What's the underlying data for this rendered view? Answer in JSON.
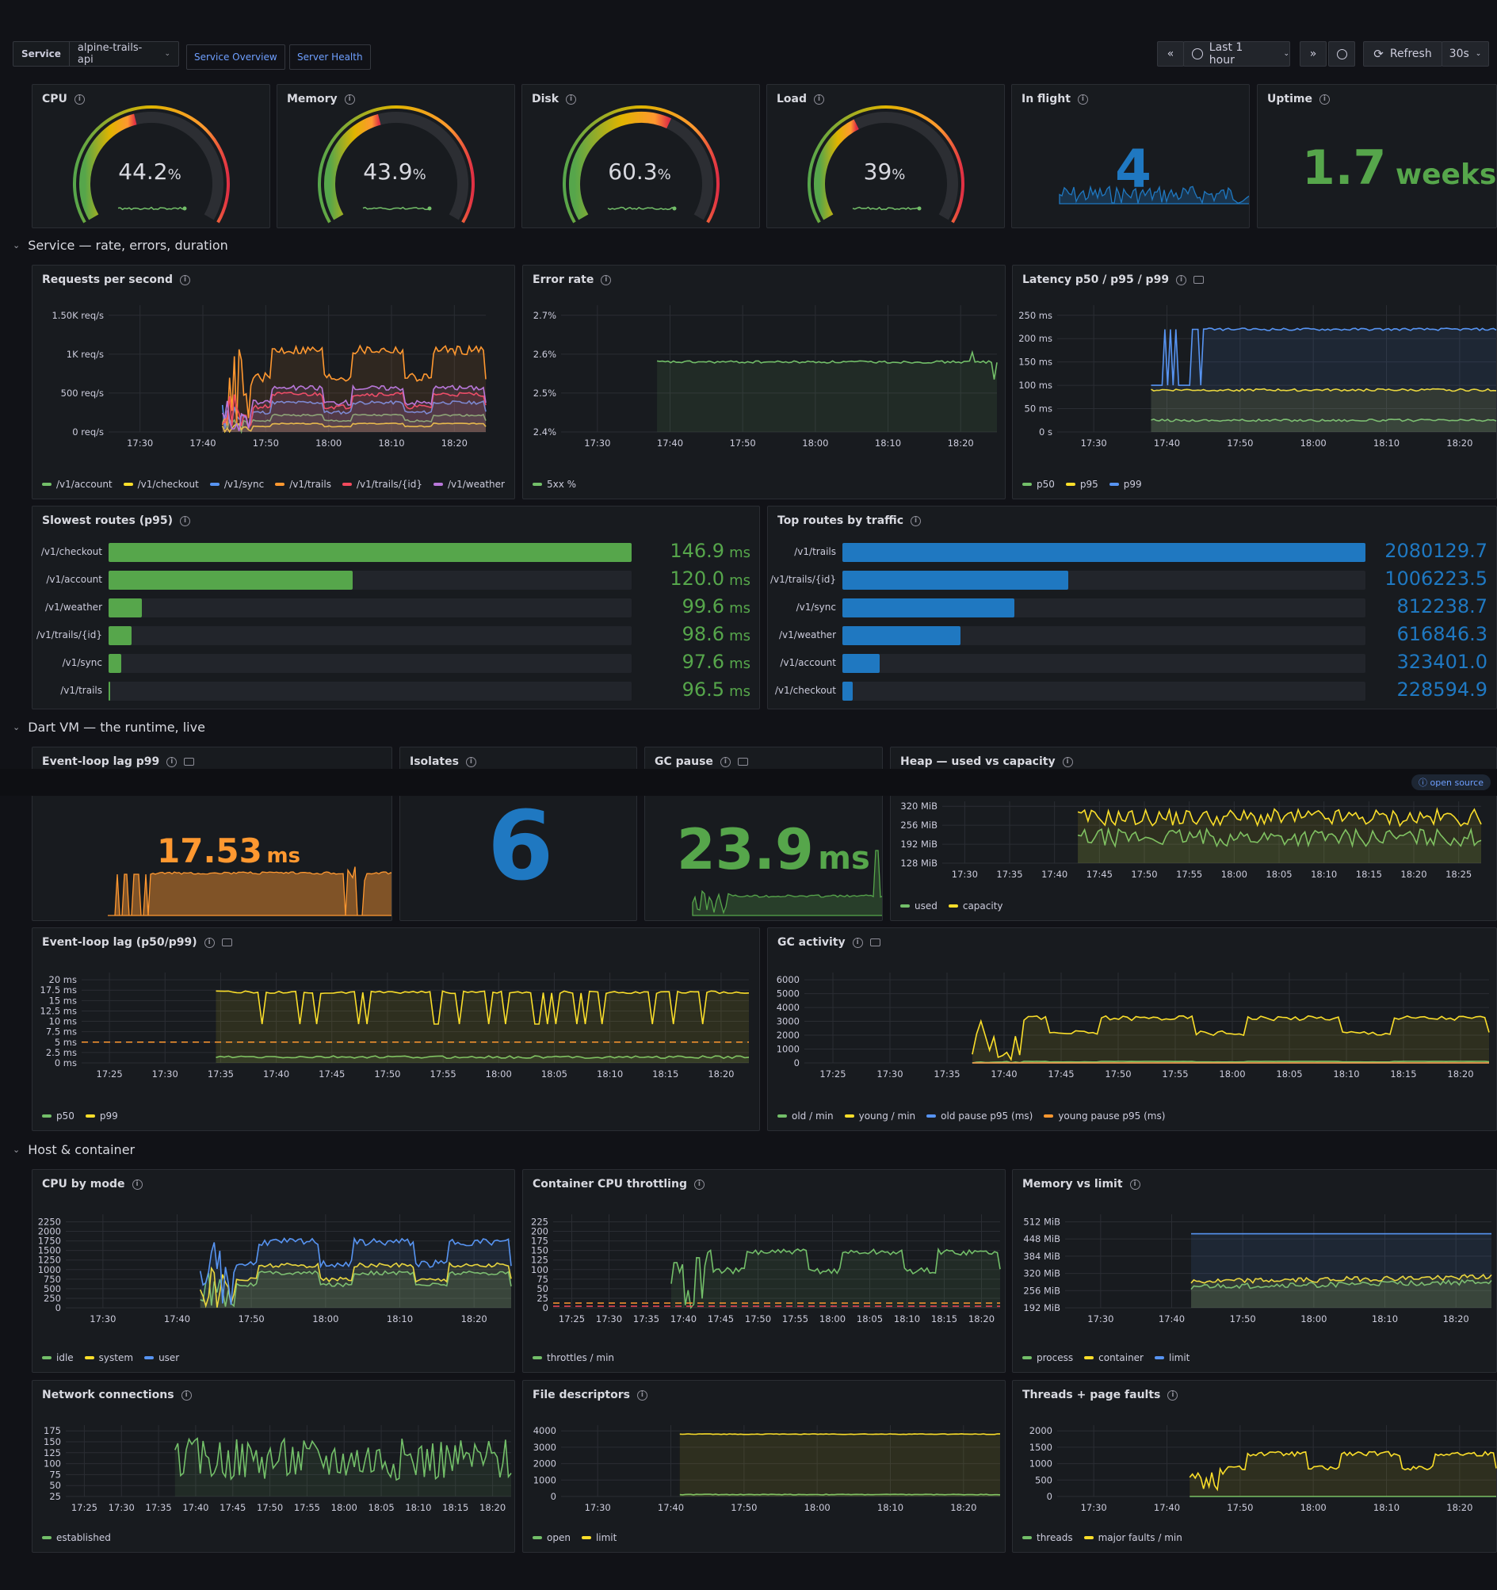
{
  "toolbar": {
    "var_label": "Service",
    "var_value": "alpine-trails-api",
    "link1": "Service Overview",
    "link2": "Server Health",
    "time_range": "Last 1 hour",
    "refresh_label": "Refresh",
    "refresh_interval": "30s"
  },
  "gauges": [
    {
      "title": "CPU",
      "value": "44.2",
      "unit": "%",
      "fraction": 0.442
    },
    {
      "title": "Memory",
      "value": "43.9",
      "unit": "%",
      "fraction": 0.439
    },
    {
      "title": "Disk",
      "value": "60.3",
      "unit": "%",
      "fraction": 0.603
    },
    {
      "title": "Load",
      "value": "39",
      "unit": "%",
      "fraction": 0.39
    }
  ],
  "stats_top": {
    "inflight": {
      "title": "In flight",
      "value": "4"
    },
    "uptime": {
      "title": "Uptime",
      "value": "1.7",
      "unit": "weeks"
    }
  },
  "rows": {
    "service": "Service — rate, errors, duration",
    "dartvm": "Dart VM — the runtime, live",
    "host": "Host & container"
  },
  "panels": {
    "rps": "Requests per second",
    "error_rate": "Error rate",
    "latency": "Latency p50 / p95 / p99",
    "slowest": "Slowest routes (p95)",
    "top_traffic": "Top routes by traffic",
    "el_p99": "Event-loop lag p99",
    "isolates": "Isolates",
    "gc_pause": "GC pause",
    "heap": "Heap — used vs capacity",
    "el_lag": "Event-loop lag (p50/p99)",
    "gc_activity": "GC activity",
    "cpu_mode": "CPU by mode",
    "throttling": "Container CPU throttling",
    "mem_limit": "Memory vs limit",
    "net_conn": "Network connections",
    "fds": "File descriptors",
    "threads": "Threads + page faults"
  },
  "badge": "ⓘ open source",
  "vm_stats": {
    "el_p99": {
      "value": "17.53",
      "unit": "ms"
    },
    "isolates": {
      "value": "6"
    },
    "gc_pause": {
      "value": "23.9",
      "unit": "ms"
    }
  },
  "chart_data": [
    {
      "id": "rps",
      "type": "line",
      "x_ticks": [
        "17:30",
        "17:40",
        "17:50",
        "18:00",
        "18:10",
        "18:20"
      ],
      "y_ticks": [
        "0 req/s",
        "500 req/s",
        "1K req/s",
        "1.50K req/s"
      ],
      "ylim": [
        0,
        1900
      ],
      "series": [
        {
          "name": "/v1/account",
          "color": "#73bf69"
        },
        {
          "name": "/v1/checkout",
          "color": "#fade2a"
        },
        {
          "name": "/v1/sync",
          "color": "#5794f2"
        },
        {
          "name": "/v1/trails",
          "color": "#ff9830"
        },
        {
          "name": "/v1/trails/{id}",
          "color": "#f2495c"
        },
        {
          "name": "/v1/weather",
          "color": "#b877d9"
        }
      ]
    },
    {
      "id": "error_rate",
      "type": "line",
      "x_ticks": [
        "17:30",
        "17:40",
        "17:50",
        "18:00",
        "18:10",
        "18:20"
      ],
      "y_ticks": [
        "2.4%",
        "2.5%",
        "2.6%",
        "2.7%"
      ],
      "ylim": [
        2.4,
        2.78
      ],
      "series": [
        {
          "name": "5xx %",
          "color": "#73bf69"
        }
      ]
    },
    {
      "id": "latency",
      "type": "line",
      "x_ticks": [
        "17:30",
        "17:40",
        "17:50",
        "18:00",
        "18:10",
        "18:20"
      ],
      "y_ticks": [
        "0 s",
        "50 ms",
        "100 ms",
        "150 ms",
        "200 ms",
        "250 ms"
      ],
      "ylim": [
        0,
        260
      ],
      "series": [
        {
          "name": "p50",
          "color": "#73bf69"
        },
        {
          "name": "p95",
          "color": "#fade2a"
        },
        {
          "name": "p99",
          "color": "#5794f2"
        }
      ]
    },
    {
      "id": "slowest",
      "type": "bar",
      "color": "#56a64b",
      "categories": [
        "/v1/checkout",
        "/v1/account",
        "/v1/weather",
        "/v1/trails/{id}",
        "/v1/sync",
        "/v1/trails"
      ],
      "values": [
        146.9,
        120.0,
        99.6,
        98.6,
        97.6,
        96.5
      ],
      "labels": [
        "146.9",
        "120.0",
        "99.6",
        "98.6",
        "97.6",
        "96.5"
      ],
      "unit": "ms"
    },
    {
      "id": "top_traffic",
      "type": "bar",
      "color": "#1f78c1",
      "categories": [
        "/v1/trails",
        "/v1/trails/{id}",
        "/v1/sync",
        "/v1/weather",
        "/v1/account",
        "/v1/checkout"
      ],
      "values": [
        2080129.7,
        1006223.5,
        812238.7,
        616846.3,
        323401.0,
        228594.9
      ],
      "labels": [
        "2080129.7",
        "1006223.5",
        "812238.7",
        "616846.3",
        "323401.0",
        "228594.9"
      ]
    },
    {
      "id": "heap",
      "type": "line",
      "x_ticks": [
        "17:30",
        "17:35",
        "17:40",
        "17:45",
        "17:50",
        "17:55",
        "18:00",
        "18:05",
        "18:10",
        "18:15",
        "18:20",
        "18:25"
      ],
      "y_ticks": [
        "128 MiB",
        "192 MiB",
        "256 MiB",
        "320 MiB"
      ],
      "series": [
        {
          "name": "used",
          "color": "#73bf69"
        },
        {
          "name": "capacity",
          "color": "#fade2a"
        }
      ]
    },
    {
      "id": "el_lag",
      "type": "line",
      "x_ticks": [
        "17:25",
        "17:30",
        "17:35",
        "17:40",
        "17:45",
        "17:50",
        "17:55",
        "18:00",
        "18:05",
        "18:10",
        "18:15",
        "18:20"
      ],
      "y_ticks": [
        "0 ms",
        "2.5 ms",
        "5 ms",
        "7.5 ms",
        "10 ms",
        "12.5 ms",
        "15 ms",
        "17.5 ms",
        "20 ms"
      ],
      "ylim": [
        0,
        20
      ],
      "threshold": 5,
      "series": [
        {
          "name": "p50",
          "color": "#73bf69"
        },
        {
          "name": "p99",
          "color": "#fade2a"
        }
      ]
    },
    {
      "id": "gc_activity",
      "type": "line",
      "x_ticks": [
        "17:25",
        "17:30",
        "17:35",
        "17:40",
        "17:45",
        "17:50",
        "17:55",
        "18:00",
        "18:05",
        "18:10",
        "18:15",
        "18:20"
      ],
      "y_ticks": [
        "0",
        "1000",
        "2000",
        "3000",
        "4000",
        "5000",
        "6000"
      ],
      "ylim": [
        0,
        6000
      ],
      "series": [
        {
          "name": "old / min",
          "color": "#73bf69"
        },
        {
          "name": "young / min",
          "color": "#fade2a"
        },
        {
          "name": "old pause p95 (ms)",
          "color": "#5794f2"
        },
        {
          "name": "young pause p95 (ms)",
          "color": "#ff9830"
        }
      ]
    },
    {
      "id": "cpu_mode",
      "type": "line",
      "x_ticks": [
        "17:30",
        "17:40",
        "17:50",
        "18:00",
        "18:10",
        "18:20"
      ],
      "y_ticks": [
        "0",
        "250",
        "500",
        "750",
        "1000",
        "1250",
        "1500",
        "1750",
        "2000",
        "2250"
      ],
      "ylim": [
        0,
        2300
      ],
      "series": [
        {
          "name": "idle",
          "color": "#73bf69"
        },
        {
          "name": "system",
          "color": "#fade2a"
        },
        {
          "name": "user",
          "color": "#5794f2"
        }
      ]
    },
    {
      "id": "throttling",
      "type": "line",
      "x_ticks": [
        "17:25",
        "17:30",
        "17:35",
        "17:40",
        "17:45",
        "17:50",
        "17:55",
        "18:00",
        "18:05",
        "18:10",
        "18:15",
        "18:20"
      ],
      "y_ticks": [
        "0",
        "25",
        "50",
        "75",
        "100",
        "125",
        "150",
        "175",
        "200",
        "225"
      ],
      "ylim": [
        0,
        230
      ],
      "series": [
        {
          "name": "throttles / min",
          "color": "#73bf69"
        }
      ]
    },
    {
      "id": "mem_limit",
      "type": "line",
      "x_ticks": [
        "17:30",
        "17:40",
        "17:50",
        "18:00",
        "18:10",
        "18:20"
      ],
      "y_ticks": [
        "192 MiB",
        "256 MiB",
        "320 MiB",
        "384 MiB",
        "448 MiB",
        "512 MiB"
      ],
      "series": [
        {
          "name": "process",
          "color": "#73bf69"
        },
        {
          "name": "container",
          "color": "#fade2a"
        },
        {
          "name": "limit",
          "color": "#5794f2"
        }
      ]
    },
    {
      "id": "net_conn",
      "type": "line",
      "x_ticks": [
        "17:25",
        "17:30",
        "17:35",
        "17:40",
        "17:45",
        "17:50",
        "17:55",
        "18:00",
        "18:05",
        "18:10",
        "18:15",
        "18:20"
      ],
      "y_ticks": [
        "25",
        "50",
        "75",
        "100",
        "125",
        "150",
        "175"
      ],
      "ylim": [
        20,
        185
      ],
      "series": [
        {
          "name": "established",
          "color": "#73bf69"
        }
      ]
    },
    {
      "id": "fds",
      "type": "line",
      "x_ticks": [
        "17:30",
        "17:40",
        "17:50",
        "18:00",
        "18:10",
        "18:20"
      ],
      "y_ticks": [
        "0",
        "1000",
        "2000",
        "3000",
        "4000"
      ],
      "ylim": [
        0,
        4200
      ],
      "series": [
        {
          "name": "open",
          "color": "#73bf69"
        },
        {
          "name": "limit",
          "color": "#fade2a"
        }
      ]
    },
    {
      "id": "threads",
      "type": "line",
      "x_ticks": [
        "17:30",
        "17:40",
        "17:50",
        "18:00",
        "18:10",
        "18:20"
      ],
      "y_ticks": [
        "0",
        "500",
        "1000",
        "1500",
        "2000"
      ],
      "ylim": [
        0,
        2200
      ],
      "series": [
        {
          "name": "threads",
          "color": "#73bf69"
        },
        {
          "name": "major faults / min",
          "color": "#fade2a"
        }
      ]
    }
  ]
}
